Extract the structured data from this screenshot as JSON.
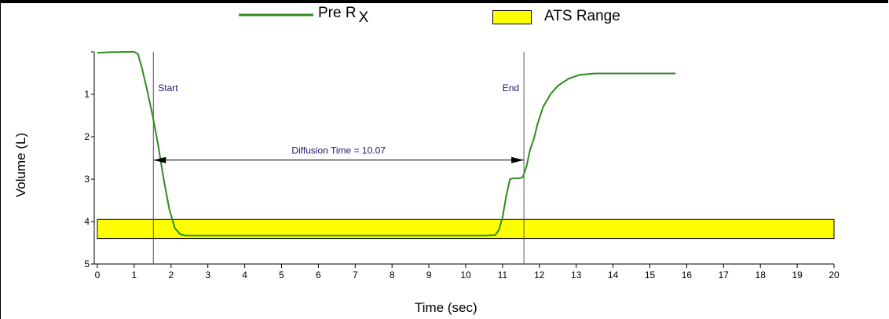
{
  "legend": {
    "series_label": "Pre R",
    "series_subscript": "X",
    "range_label": "ATS Range"
  },
  "colors": {
    "series": "#2e8b1e",
    "range_fill": "#ffff00",
    "marker_text": "#1a1a6e"
  },
  "chart_data": {
    "type": "line",
    "xlabel": "Time (sec)",
    "ylabel": "Volume  (L)",
    "xlim": [
      0,
      20
    ],
    "ylim": [
      0,
      5
    ],
    "y_inverted": true,
    "x_ticks": [
      "0",
      "1",
      "2",
      "3",
      "4",
      "5",
      "6",
      "7",
      "8",
      "9",
      "10",
      "11",
      "12",
      "13",
      "14",
      "15",
      "16",
      "17",
      "18",
      "19",
      "20"
    ],
    "y_ticks": [
      "1",
      "2",
      "3",
      "4",
      "5"
    ],
    "series": [
      {
        "values_x": [
          0,
          0.3,
          0.8,
          1.0,
          1.1,
          1.2,
          1.35,
          1.5,
          1.65,
          1.8,
          1.95,
          2.1,
          2.25,
          2.4,
          3,
          5,
          7,
          9,
          10.5,
          10.8,
          10.9,
          11.0,
          11.1,
          11.2,
          11.3,
          11.45,
          11.55,
          11.65,
          11.75,
          11.85,
          11.95,
          12.1,
          12.3,
          12.5,
          12.8,
          13.1,
          13.5,
          14,
          15,
          15.7
        ],
        "values_y": [
          0.02,
          0.01,
          0.0,
          0.0,
          0.05,
          0.35,
          0.9,
          1.5,
          2.2,
          3.0,
          3.7,
          4.15,
          4.3,
          4.33,
          4.33,
          4.33,
          4.33,
          4.33,
          4.33,
          4.32,
          4.2,
          3.9,
          3.4,
          3.0,
          2.98,
          2.98,
          2.95,
          2.7,
          2.3,
          2.05,
          1.7,
          1.3,
          1.0,
          0.8,
          0.63,
          0.54,
          0.51,
          0.51,
          0.51,
          0.51
        ]
      }
    ],
    "ats_range": [
      3.95,
      4.4
    ],
    "markers": [
      {
        "label": "Start",
        "x": 1.52
      },
      {
        "label": "End",
        "x": 11.58
      }
    ],
    "annotation": {
      "label": "Diffusion Time =  10.07",
      "x_start": 1.52,
      "x_end": 11.58,
      "y": 2.55
    }
  }
}
